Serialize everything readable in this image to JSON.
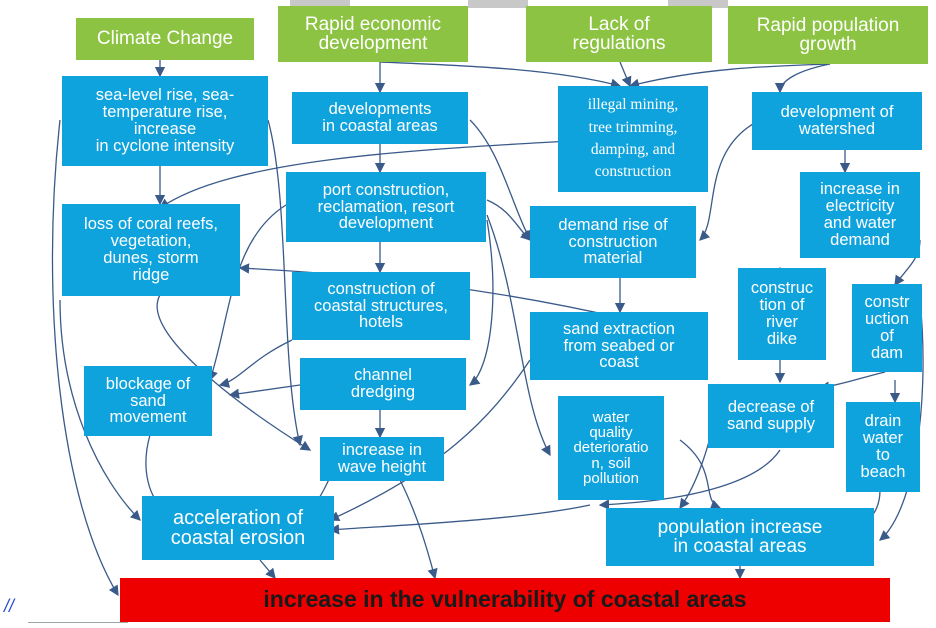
{
  "causes": [
    {
      "id": "climate",
      "label": "Climate Change"
    },
    {
      "id": "economic",
      "label": "Rapid economic\ndevelopment"
    },
    {
      "id": "regulations",
      "label": "Lack of\nregulations"
    },
    {
      "id": "population",
      "label": "Rapid population\ngrowth"
    }
  ],
  "effects": {
    "sea_level": "sea-level rise, sea-\ntemperature rise,\nincrease\nin cyclone intensity",
    "coastal_dev": "developments\nin coastal areas",
    "illegal_mining": "illegal mining,\ntree trimming,\ndamping, and\nconstruction",
    "watershed": "development of\nwatershed",
    "port": "port construction,\nreclamation, resort\ndevelopment",
    "coral": "loss of coral reefs,\nvegetation,\ndunes, storm\nridge",
    "demand_material": "demand rise of\nconstruction\nmaterial",
    "electricity": "increase in\nelectricity\nand water\ndemand",
    "coastal_structures": "construction of\ncoastal structures,\nhotels",
    "river_dike": "construc\ntion of\nriver\ndike",
    "dam": "constr\nuction\nof\ndam",
    "sand_extraction": "sand extraction\nfrom seabed or\ncoast",
    "blockage": "blockage of\nsand\nmovement",
    "dredging": "channel\ndredging",
    "sand_supply": "decrease of\nsand supply",
    "water_quality": "water\nquality\ndeterioratio\nn, soil\npollution",
    "drain": "drain\nwater\nto\nbeach",
    "wave": "increase in\nwave height",
    "erosion": "acceleration of\ncoastal erosion",
    "pop_increase": "population increase\nin coastal areas"
  },
  "final": "increase in the vulnerability of coastal areas",
  "footnote": "//",
  "colors": {
    "cause": "#8cc342",
    "effect": "#0fa3de",
    "final": "#ee0000",
    "arrow": "#3a5a8a"
  }
}
